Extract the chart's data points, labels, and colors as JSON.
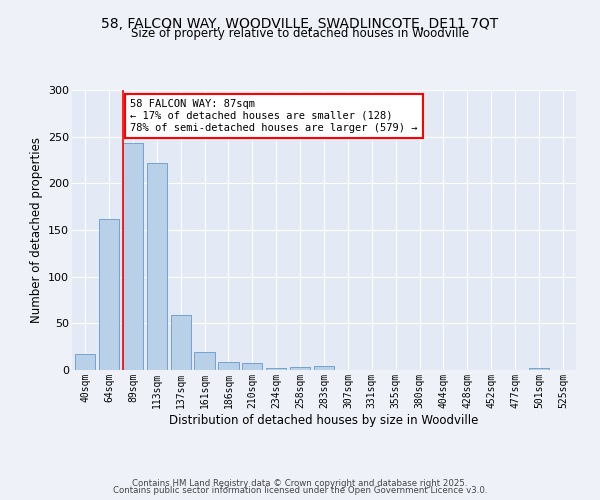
{
  "title_line1": "58, FALCON WAY, WOODVILLE, SWADLINCOTE, DE11 7QT",
  "title_line2": "Size of property relative to detached houses in Woodville",
  "xlabel": "Distribution of detached houses by size in Woodville",
  "ylabel": "Number of detached properties",
  "categories": [
    "40sqm",
    "64sqm",
    "89sqm",
    "113sqm",
    "137sqm",
    "161sqm",
    "186sqm",
    "210sqm",
    "234sqm",
    "258sqm",
    "283sqm",
    "307sqm",
    "331sqm",
    "355sqm",
    "380sqm",
    "404sqm",
    "428sqm",
    "452sqm",
    "477sqm",
    "501sqm",
    "525sqm"
  ],
  "values": [
    17,
    162,
    243,
    222,
    59,
    19,
    9,
    7,
    2,
    3,
    4,
    0,
    0,
    0,
    0,
    0,
    0,
    0,
    0,
    2,
    0
  ],
  "bar_color": "#b8d0e8",
  "bar_edge_color": "#6699cc",
  "red_line_index": 2,
  "annotation_title": "58 FALCON WAY: 87sqm",
  "annotation_line2": "← 17% of detached houses are smaller (128)",
  "annotation_line3": "78% of semi-detached houses are larger (579) →",
  "ylim": [
    0,
    300
  ],
  "yticks": [
    0,
    50,
    100,
    150,
    200,
    250,
    300
  ],
  "footer_line1": "Contains HM Land Registry data © Crown copyright and database right 2025.",
  "footer_line2": "Contains public sector information licensed under the Open Government Licence v3.0.",
  "bg_color": "#eef2f8",
  "plot_bg_color": "#e4eaf5"
}
